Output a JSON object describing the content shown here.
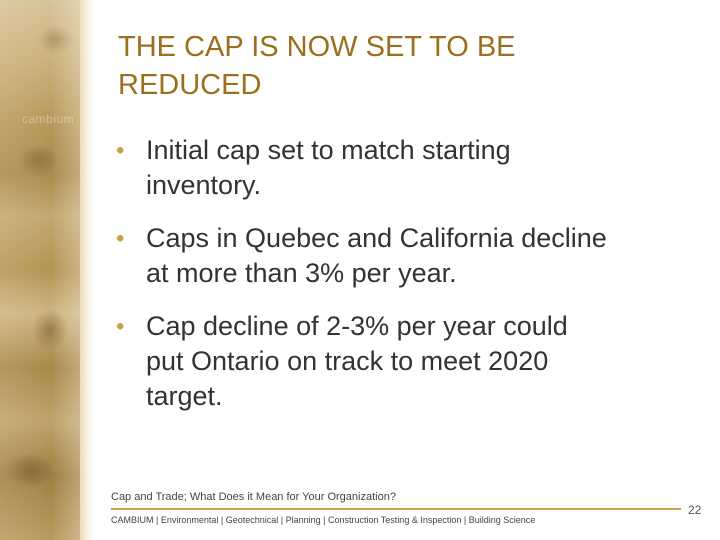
{
  "slide": {
    "title_line1": "THE CAP IS NOW SET TO BE",
    "title_line2": "REDUCED",
    "bullets": [
      {
        "line1": "Initial cap set to match starting",
        "line2": "inventory."
      },
      {
        "line1": "Caps in Quebec and California decline",
        "line2": "at more than 3% per year."
      },
      {
        "line1": "Cap decline of 2-3% per year could",
        "line2": "put Ontario on track to meet 2020",
        "line3": "target."
      }
    ],
    "bullet_symbol": "•"
  },
  "footer": {
    "subtitle": "Cap and Trade; What Does it Mean for Your Organization?",
    "nav": "CAMBIUM  |  Environmental  | Geotechnical | Planning  | Construction Testing & Inspection | Building Science",
    "page_number": "22",
    "logo_text": "cambium"
  },
  "colors": {
    "title": "#9a6f1e",
    "accent": "#c9a043",
    "body_text": "#333333"
  }
}
